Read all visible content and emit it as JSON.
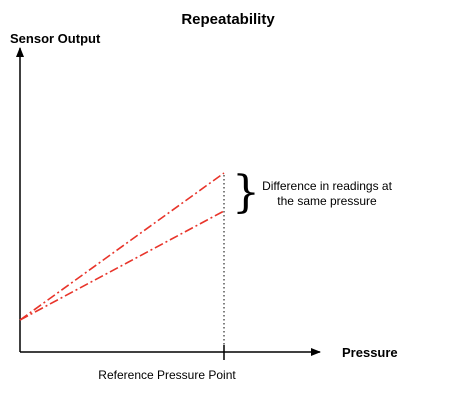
{
  "title": "Repeatability",
  "y_axis_label": "Sensor Output",
  "x_axis_label": "Pressure",
  "reference_label": "Reference Pressure Point",
  "annotation": {
    "line1": "Difference in readings at",
    "line2": "the same pressure"
  },
  "colors": {
    "axes": "#000000",
    "trace": "#e8342a",
    "reference": "#000000"
  }
}
